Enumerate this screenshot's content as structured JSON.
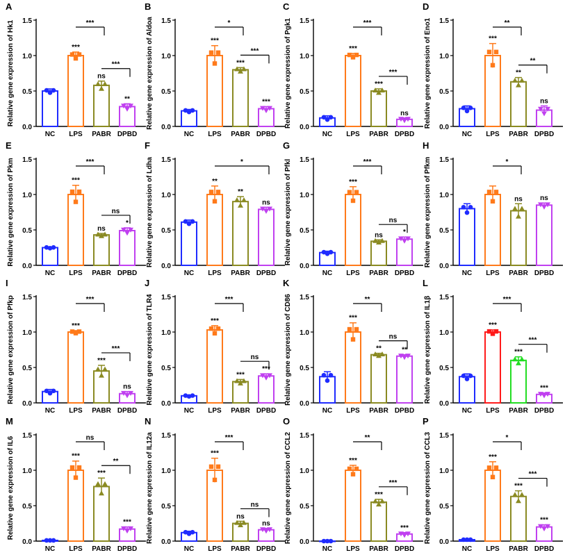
{
  "figure": {
    "categories": [
      "NC",
      "LPS",
      "PABR",
      "DPBD"
    ],
    "ylabel_prefix": "Relative gene expression of ",
    "y_ticks": [
      "0.0",
      "0.5",
      "1.0",
      "1.5"
    ],
    "colors": {
      "NC": "#1f2bff",
      "LPS": "#ff7a1a",
      "PABR": "#8a8a22",
      "DPBD": "#c040f0"
    }
  },
  "chart_data": [
    {
      "panel": "A",
      "gene": "Hk1",
      "type": "bar",
      "ylim": [
        0,
        1.5
      ],
      "values": [
        0.5,
        1.0,
        0.58,
        0.28
      ],
      "errors": [
        0.03,
        0.05,
        0.06,
        0.04
      ],
      "sig": [
        "",
        "***",
        "ns",
        "**"
      ],
      "comparisons": [
        {
          "from": 1,
          "to": 2,
          "label": "***"
        },
        {
          "from": 2,
          "to": 3,
          "label": "***"
        }
      ]
    },
    {
      "panel": "B",
      "gene": "Aldoa",
      "type": "bar",
      "ylim": [
        0,
        1.5
      ],
      "values": [
        0.22,
        1.0,
        0.8,
        0.25
      ],
      "errors": [
        0.02,
        0.14,
        0.03,
        0.03
      ],
      "sig": [
        "",
        "***",
        "***",
        "***"
      ],
      "comparisons": [
        {
          "from": 1,
          "to": 2,
          "label": "*"
        },
        {
          "from": 2,
          "to": 3,
          "label": "***"
        }
      ]
    },
    {
      "panel": "C",
      "gene": "Pgk1",
      "type": "bar",
      "ylim": [
        0,
        1.5
      ],
      "values": [
        0.12,
        1.0,
        0.5,
        0.1
      ],
      "errors": [
        0.03,
        0.03,
        0.03,
        0.02
      ],
      "sig": [
        "",
        "***",
        "***",
        "ns"
      ],
      "comparisons": [
        {
          "from": 1,
          "to": 2,
          "label": "***"
        },
        {
          "from": 2,
          "to": 3,
          "label": "***"
        }
      ]
    },
    {
      "panel": "D",
      "gene": "Eno1",
      "type": "bar",
      "ylim": [
        0,
        1.5
      ],
      "values": [
        0.25,
        1.0,
        0.63,
        0.23
      ],
      "errors": [
        0.04,
        0.17,
        0.06,
        0.06
      ],
      "sig": [
        "",
        "***",
        "**",
        "ns"
      ],
      "comparisons": [
        {
          "from": 1,
          "to": 2,
          "label": "**"
        },
        {
          "from": 2,
          "to": 3,
          "label": "**"
        }
      ]
    },
    {
      "panel": "E",
      "gene": "Pkm",
      "type": "bar",
      "ylim": [
        0,
        1.5
      ],
      "values": [
        0.25,
        1.0,
        0.43,
        0.49
      ],
      "errors": [
        0.01,
        0.13,
        0.02,
        0.04
      ],
      "sig": [
        "",
        "***",
        "ns",
        "*"
      ],
      "comparisons": [
        {
          "from": 1,
          "to": 2,
          "label": "***"
        },
        {
          "from": 2,
          "to": 3,
          "label": "ns"
        }
      ]
    },
    {
      "panel": "F",
      "gene": "Ldha",
      "type": "bar",
      "ylim": [
        0,
        1.5
      ],
      "values": [
        0.61,
        1.0,
        0.9,
        0.79
      ],
      "errors": [
        0.03,
        0.12,
        0.07,
        0.03
      ],
      "sig": [
        "",
        "**",
        "**",
        "ns"
      ],
      "comparisons": [
        {
          "from": 1,
          "to": 3,
          "label": "*"
        }
      ]
    },
    {
      "panel": "G",
      "gene": "Pfkl",
      "type": "bar",
      "ylim": [
        0,
        1.5
      ],
      "values": [
        0.18,
        1.0,
        0.34,
        0.37
      ],
      "errors": [
        0.02,
        0.11,
        0.02,
        0.03
      ],
      "sig": [
        "",
        "***",
        "ns",
        "*"
      ],
      "comparisons": [
        {
          "from": 1,
          "to": 2,
          "label": "***"
        },
        {
          "from": 2,
          "to": 3,
          "label": "ns"
        }
      ]
    },
    {
      "panel": "H",
      "gene": "Pfkm",
      "type": "bar",
      "ylim": [
        0,
        1.5
      ],
      "values": [
        0.8,
        1.0,
        0.77,
        0.85
      ],
      "errors": [
        0.07,
        0.12,
        0.1,
        0.03
      ],
      "sig": [
        "",
        "",
        "ns",
        "ns"
      ],
      "comparisons": [
        {
          "from": 1,
          "to": 2,
          "label": "*"
        }
      ]
    },
    {
      "panel": "I",
      "gene": "Pfkp",
      "type": "bar",
      "ylim": [
        0,
        1.5
      ],
      "values": [
        0.16,
        1.0,
        0.45,
        0.13
      ],
      "errors": [
        0.03,
        0.02,
        0.08,
        0.03
      ],
      "sig": [
        "",
        "***",
        "***",
        "ns"
      ],
      "comparisons": [
        {
          "from": 1,
          "to": 2,
          "label": "***"
        },
        {
          "from": 2,
          "to": 3,
          "label": "***"
        }
      ]
    },
    {
      "panel": "J",
      "gene": "TLR4",
      "type": "bar",
      "ylim": [
        0,
        1.5
      ],
      "values": [
        0.1,
        1.03,
        0.3,
        0.38
      ],
      "errors": [
        0.01,
        0.06,
        0.03,
        0.03
      ],
      "sig": [
        "",
        "***",
        "***",
        "***"
      ],
      "comparisons": [
        {
          "from": 1,
          "to": 2,
          "label": "***"
        },
        {
          "from": 2,
          "to": 3,
          "label": "ns"
        }
      ]
    },
    {
      "panel": "K",
      "gene": "CD86",
      "type": "bar",
      "ylim": [
        0,
        1.5
      ],
      "values": [
        0.37,
        1.0,
        0.68,
        0.66
      ],
      "errors": [
        0.07,
        0.13,
        0.02,
        0.02
      ],
      "sig": [
        "",
        "***",
        "**",
        "**"
      ],
      "comparisons": [
        {
          "from": 1,
          "to": 2,
          "label": "**"
        },
        {
          "from": 2,
          "to": 3,
          "label": "ns"
        }
      ]
    },
    {
      "panel": "L",
      "gene": "IL1β",
      "type": "bar",
      "ylim": [
        0,
        1.5
      ],
      "values": [
        0.37,
        1.0,
        0.6,
        0.12
      ],
      "errors": [
        0.04,
        0.03,
        0.05,
        0.02
      ],
      "sig": [
        "",
        "***",
        "***",
        "***"
      ],
      "comparisons": [
        {
          "from": 1,
          "to": 2,
          "label": "***"
        },
        {
          "from": 2,
          "to": 3,
          "label": "***"
        }
      ],
      "colors": [
        "#1f2bff",
        "#ff1a1a",
        "#22dd22",
        "#c040f0"
      ]
    },
    {
      "panel": "M",
      "gene": "IL6",
      "type": "bar",
      "ylim": [
        0,
        1.5
      ],
      "values": [
        0.01,
        1.0,
        0.77,
        0.17
      ],
      "errors": [
        0.0,
        0.13,
        0.12,
        0.03
      ],
      "sig": [
        "",
        "***",
        "***",
        "***"
      ],
      "comparisons": [
        {
          "from": 1,
          "to": 2,
          "label": "ns"
        },
        {
          "from": 2,
          "to": 3,
          "label": "**"
        }
      ]
    },
    {
      "panel": "N",
      "gene": "IL12a",
      "type": "bar",
      "ylim": [
        0,
        1.5
      ],
      "values": [
        0.12,
        1.0,
        0.25,
        0.16
      ],
      "errors": [
        0.02,
        0.17,
        0.03,
        0.02
      ],
      "sig": [
        "",
        "***",
        "ns",
        "ns"
      ],
      "comparisons": [
        {
          "from": 1,
          "to": 2,
          "label": "***"
        },
        {
          "from": 2,
          "to": 3,
          "label": "ns"
        }
      ]
    },
    {
      "panel": "O",
      "gene": "CCL2",
      "type": "bar",
      "ylim": [
        0,
        1.5
      ],
      "values": [
        0.0,
        1.0,
        0.55,
        0.1
      ],
      "errors": [
        0.0,
        0.07,
        0.04,
        0.02
      ],
      "sig": [
        "",
        "***",
        "***",
        "***"
      ],
      "comparisons": [
        {
          "from": 1,
          "to": 2,
          "label": "**"
        },
        {
          "from": 2,
          "to": 3,
          "label": "***"
        }
      ]
    },
    {
      "panel": "P",
      "gene": "CCL3",
      "type": "bar",
      "ylim": [
        0,
        1.5
      ],
      "values": [
        0.02,
        1.0,
        0.63,
        0.2
      ],
      "errors": [
        0.0,
        0.12,
        0.08,
        0.03
      ],
      "sig": [
        "",
        "***",
        "***",
        "***"
      ],
      "comparisons": [
        {
          "from": 1,
          "to": 2,
          "label": "*"
        },
        {
          "from": 2,
          "to": 3,
          "label": "***"
        }
      ]
    }
  ]
}
